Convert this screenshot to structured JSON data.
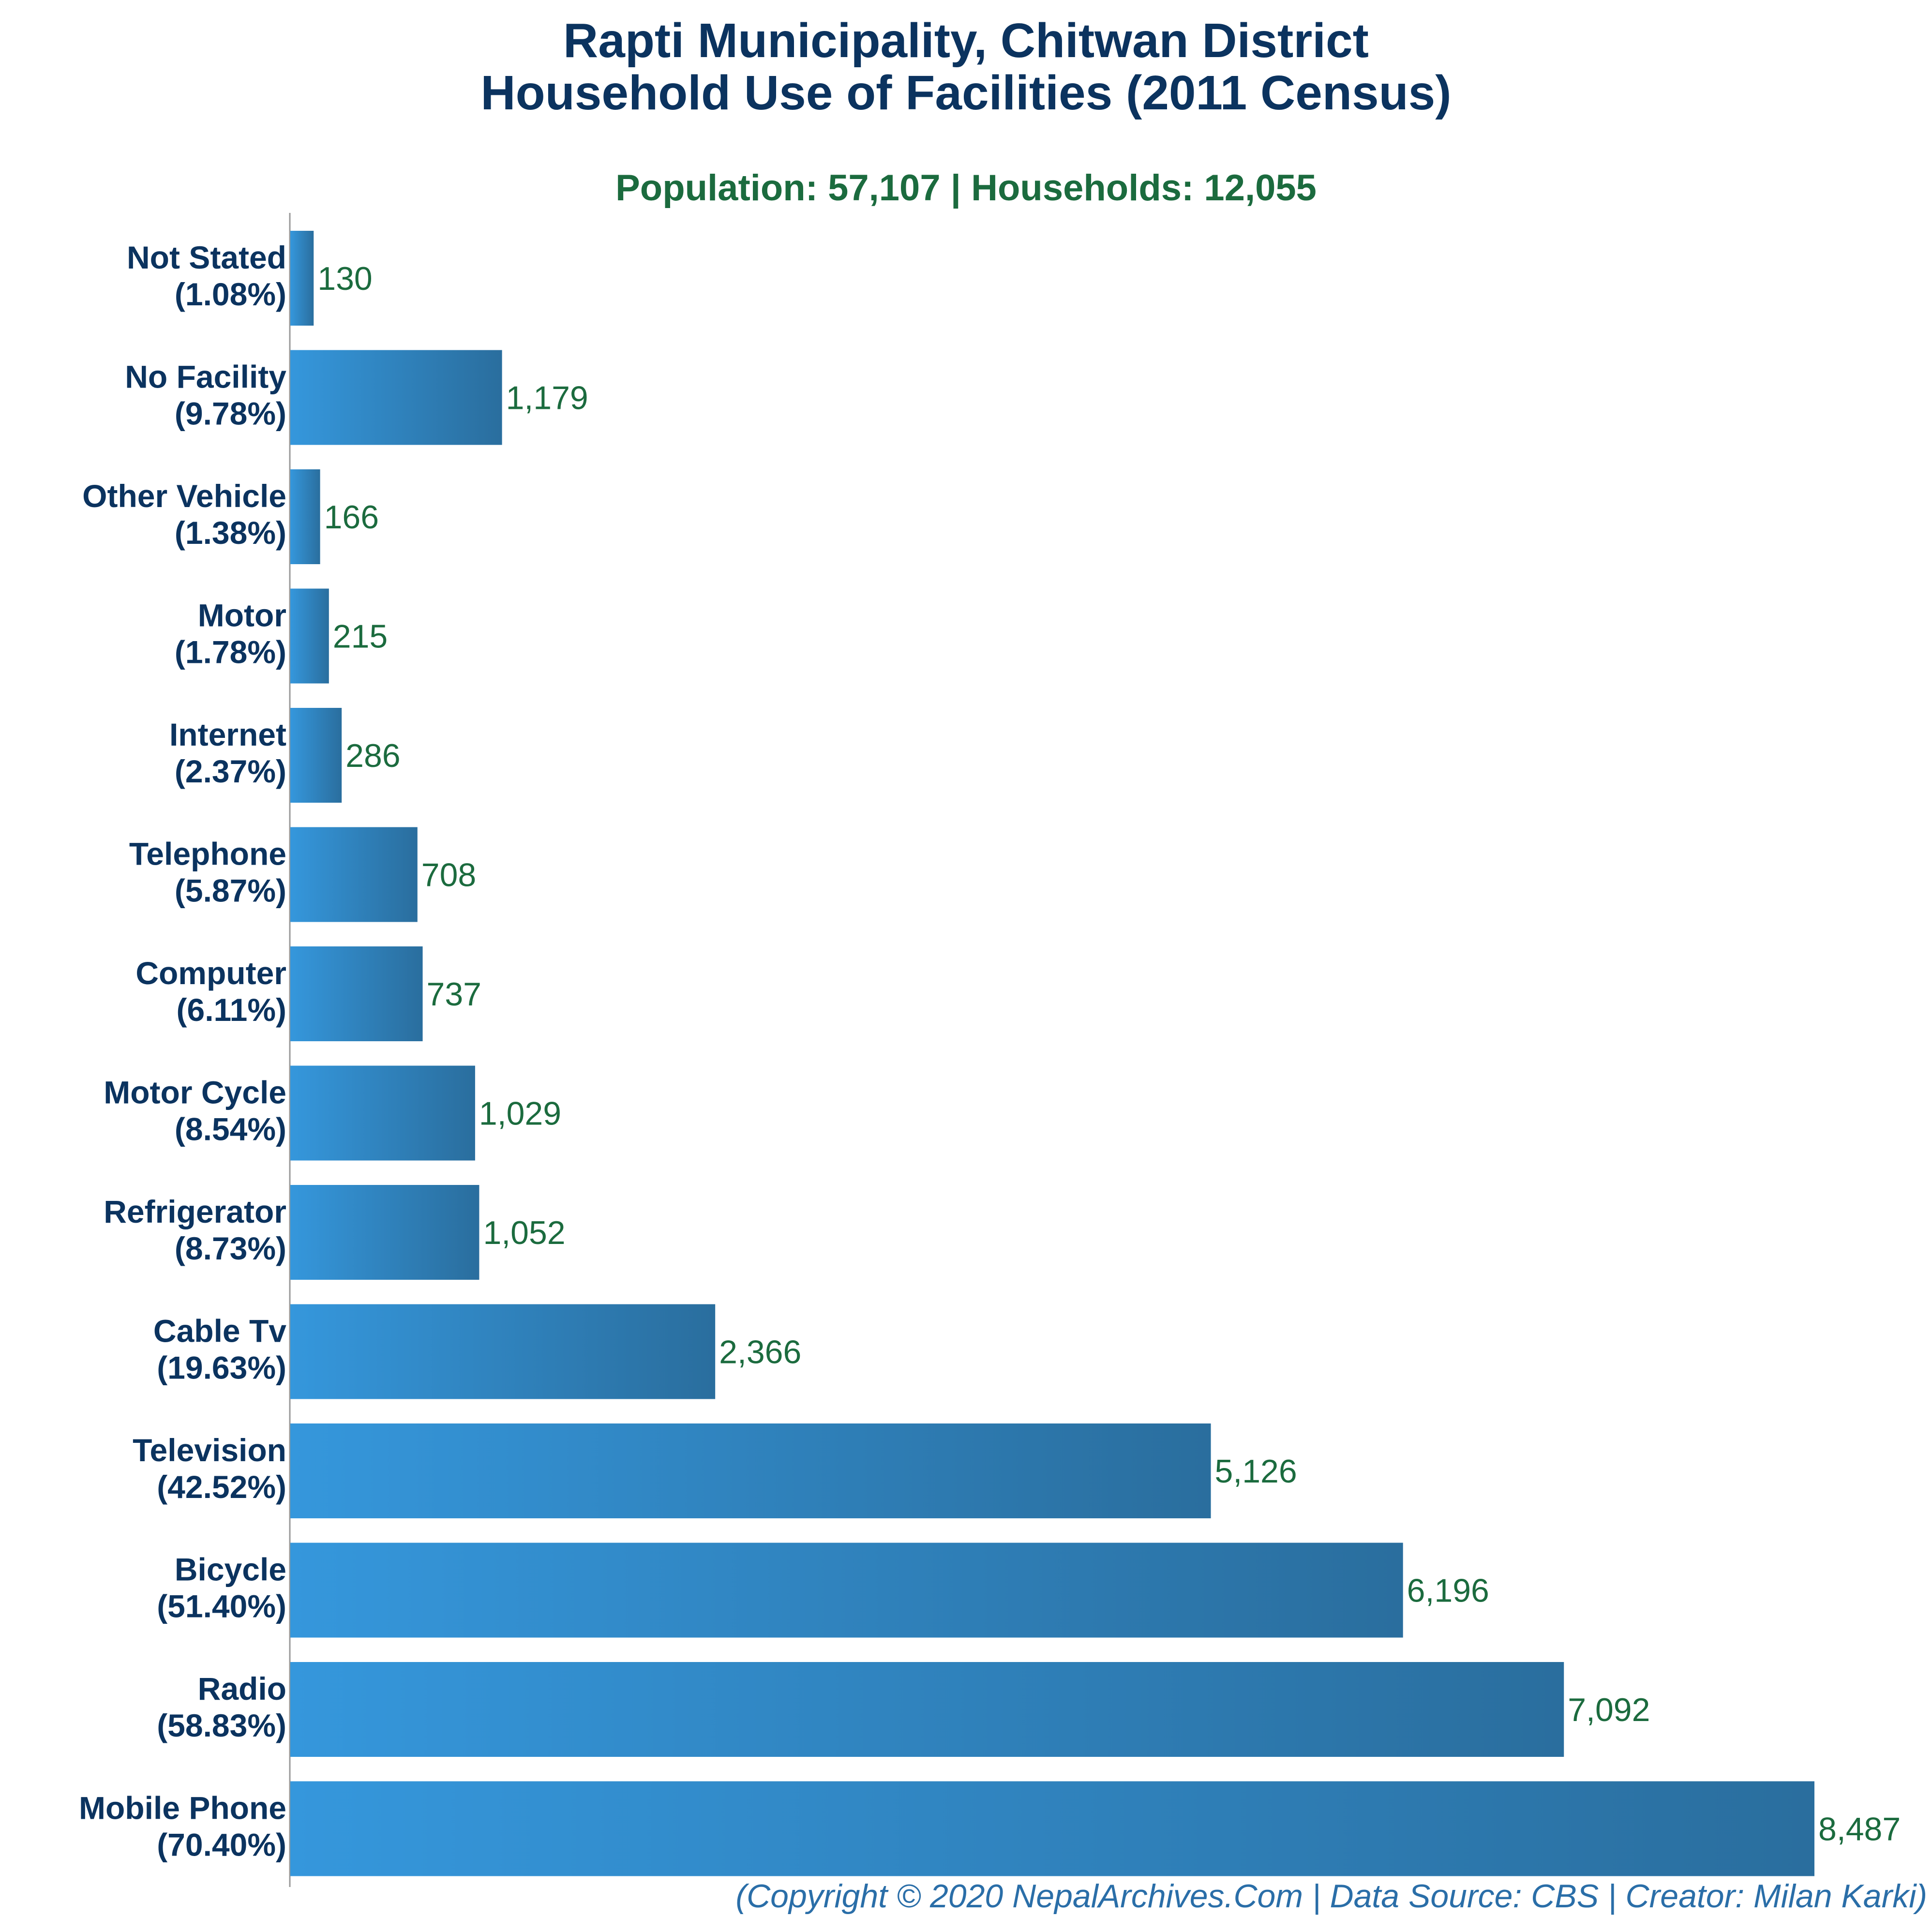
{
  "header": {
    "title_line1": "Rapti Municipality, Chitwan District",
    "title_line2": "Household Use of Facilities (2011 Census)",
    "subtitle": "Population: 57,107 | Households: 12,055"
  },
  "footer": {
    "credit": "(Copyright © 2020 NepalArchives.Com | Data Source: CBS | Creator: Milan Karki)"
  },
  "colors": {
    "title": "#0b335f",
    "subtitle": "#1b6b3e",
    "bar_start": "#3597dc",
    "bar_end": "#2a6e9e",
    "value_label": "#1b6b3e",
    "footer": "#2a6ea8",
    "axis": "#999999"
  },
  "chart_data": {
    "type": "bar",
    "orientation": "horizontal",
    "categories": [
      "Not Stated",
      "No Facility",
      "Other Vehicle",
      "Motor",
      "Internet",
      "Telephone",
      "Computer",
      "Motor Cycle",
      "Refrigerator",
      "Cable Tv",
      "Television",
      "Bicycle",
      "Radio",
      "Mobile Phone"
    ],
    "percent_labels": [
      "(1.08%)",
      "(9.78%)",
      "(1.38%)",
      "(1.78%)",
      "(2.37%)",
      "(5.87%)",
      "(6.11%)",
      "(8.54%)",
      "(8.73%)",
      "(19.63%)",
      "(42.52%)",
      "(51.40%)",
      "(58.83%)",
      "(70.40%)"
    ],
    "values": [
      130,
      1179,
      166,
      215,
      286,
      708,
      737,
      1029,
      1052,
      2366,
      5126,
      6196,
      7092,
      8487
    ],
    "value_labels": [
      "130",
      "1,179",
      "166",
      "215",
      "286",
      "708",
      "737",
      "1,029",
      "1,052",
      "2,366",
      "5,126",
      "6,196",
      "7,092",
      "8,487"
    ],
    "xlim": [
      0,
      8487
    ],
    "grid": false,
    "legend": "none"
  }
}
